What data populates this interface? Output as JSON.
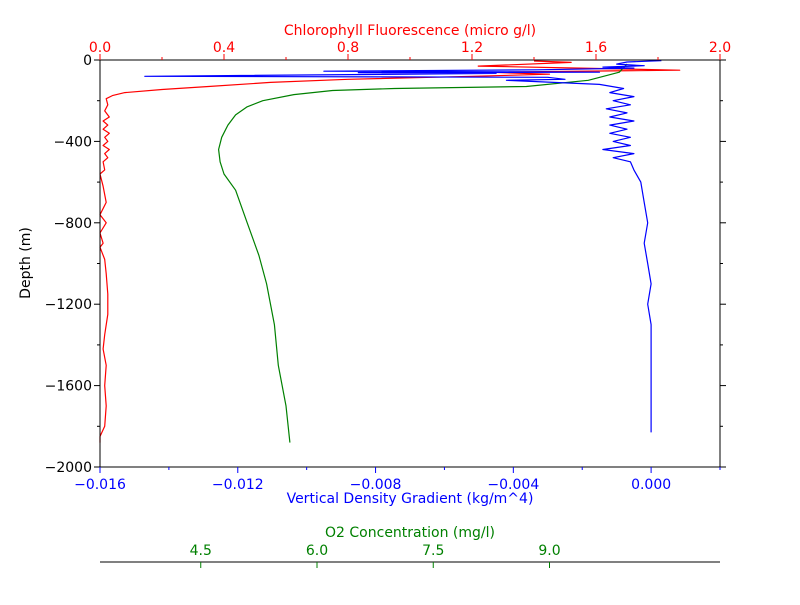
{
  "chart_data": {
    "type": "line",
    "title": "",
    "y_axis": {
      "label": "Depth (m)",
      "range": [
        -2000,
        0
      ],
      "ticks": [
        0,
        -400,
        -800,
        -1200,
        -1600,
        -2000
      ],
      "tick_labels": [
        "0",
        "−400",
        "−800",
        "−1200",
        "−1600",
        "−2000"
      ],
      "minor_ticks": [
        -200,
        -600,
        -1000,
        -1400,
        -1800
      ],
      "color": "#000000"
    },
    "x_axes": [
      {
        "id": "density",
        "position": "bottom",
        "label": "Vertical Density Gradient (kg/m^4)",
        "color": "#0000ff",
        "range": [
          -0.016,
          0.002
        ],
        "ticks": [
          -0.016,
          -0.012,
          -0.008,
          -0.004,
          0.0
        ],
        "tick_labels": [
          "−0.016",
          "−0.012",
          "−0.008",
          "−0.004",
          "0.000"
        ],
        "minor_ticks": [
          -0.014,
          -0.01,
          -0.006,
          -0.002,
          0.002
        ]
      },
      {
        "id": "chlorophyll",
        "position": "top",
        "label": "Chlorophyll Fluorescence (micro g/l)",
        "color": "#ff0000",
        "range": [
          0.0,
          2.0
        ],
        "ticks": [
          0.0,
          0.4,
          0.8,
          1.2,
          1.6,
          2.0
        ],
        "tick_labels": [
          "0.0",
          "0.4",
          "0.8",
          "1.2",
          "1.6",
          "2.0"
        ],
        "minor_ticks": [
          0.2,
          0.6,
          1.0,
          1.4,
          1.8
        ]
      },
      {
        "id": "oxygen",
        "position": "detached-bottom",
        "label": "O2 Concentration (mg/l)",
        "color": "#008000",
        "range": [
          3.2,
          11.2
        ],
        "ticks": [
          4.5,
          6.0,
          7.5,
          9.0
        ],
        "tick_labels": [
          "4.5",
          "6.0",
          "7.5",
          "9.0"
        ]
      }
    ],
    "series": [
      {
        "axis": "chlorophyll",
        "color": "#ff0000",
        "points": [
          [
            1.4,
            -5
          ],
          [
            1.52,
            -12
          ],
          [
            1.22,
            -30
          ],
          [
            1.55,
            -40
          ],
          [
            1.87,
            -50
          ],
          [
            1.25,
            -60
          ],
          [
            1.45,
            -70
          ],
          [
            1.2,
            -80
          ],
          [
            0.8,
            -95
          ],
          [
            0.55,
            -110
          ],
          [
            0.35,
            -130
          ],
          [
            0.2,
            -145
          ],
          [
            0.08,
            -160
          ],
          [
            0.04,
            -175
          ],
          [
            0.02,
            -190
          ],
          [
            0.025,
            -220
          ],
          [
            0.015,
            -250
          ],
          [
            0.03,
            -280
          ],
          [
            0.01,
            -300
          ],
          [
            0.025,
            -320
          ],
          [
            0.01,
            -340
          ],
          [
            0.03,
            -360
          ],
          [
            0.015,
            -380
          ],
          [
            0.025,
            -400
          ],
          [
            0.01,
            -420
          ],
          [
            0.03,
            -440
          ],
          [
            0.015,
            -460
          ],
          [
            0.025,
            -480
          ],
          [
            0.01,
            -500
          ],
          [
            0.015,
            -540
          ],
          [
            0.0,
            -560
          ],
          [
            0.01,
            -620
          ],
          [
            0.02,
            -700
          ],
          [
            0.0,
            -760
          ],
          [
            0.02,
            -800
          ],
          [
            0.0,
            -850
          ],
          [
            0.01,
            -900
          ],
          [
            0.0,
            -920
          ],
          [
            0.015,
            -980
          ],
          [
            0.02,
            -1050
          ],
          [
            0.025,
            -1150
          ],
          [
            0.025,
            -1250
          ],
          [
            0.015,
            -1350
          ],
          [
            0.01,
            -1420
          ],
          [
            0.02,
            -1500
          ],
          [
            0.015,
            -1600
          ],
          [
            0.02,
            -1700
          ],
          [
            0.015,
            -1800
          ],
          [
            0.0,
            -1850
          ],
          [
            0.0,
            -1880
          ]
        ]
      },
      {
        "axis": "oxygen",
        "color": "#008000",
        "points": [
          [
            10.0,
            -20
          ],
          [
            9.9,
            -60
          ],
          [
            9.5,
            -100
          ],
          [
            8.7,
            -130
          ],
          [
            7.0,
            -140
          ],
          [
            6.2,
            -150
          ],
          [
            5.7,
            -170
          ],
          [
            5.3,
            -200
          ],
          [
            5.1,
            -230
          ],
          [
            4.95,
            -270
          ],
          [
            4.85,
            -320
          ],
          [
            4.77,
            -380
          ],
          [
            4.73,
            -440
          ],
          [
            4.75,
            -500
          ],
          [
            4.8,
            -560
          ],
          [
            4.95,
            -640
          ],
          [
            5.1,
            -800
          ],
          [
            5.25,
            -960
          ],
          [
            5.35,
            -1100
          ],
          [
            5.45,
            -1300
          ],
          [
            5.5,
            -1500
          ],
          [
            5.6,
            -1700
          ],
          [
            5.65,
            -1880
          ]
        ]
      },
      {
        "axis": "density",
        "color": "#0000ff",
        "points": [
          [
            0.0003,
            -3
          ],
          [
            -0.0007,
            -10
          ],
          [
            -0.001,
            -20
          ],
          [
            -0.0002,
            -28
          ],
          [
            -0.0014,
            -35
          ],
          [
            -0.0005,
            -40
          ],
          [
            -0.0033,
            -48
          ],
          [
            -0.0095,
            -55
          ],
          [
            -0.0015,
            -60
          ],
          [
            -0.0085,
            -62
          ],
          [
            -0.0045,
            -66
          ],
          [
            -0.0147,
            -80
          ],
          [
            -0.003,
            -85
          ],
          [
            -0.0025,
            -95
          ],
          [
            -0.0042,
            -100
          ],
          [
            -0.0015,
            -120
          ],
          [
            -0.0008,
            -140
          ],
          [
            -0.0012,
            -160
          ],
          [
            -0.0005,
            -180
          ],
          [
            -0.0011,
            -200
          ],
          [
            -0.0006,
            -220
          ],
          [
            -0.0013,
            -240
          ],
          [
            -0.0007,
            -260
          ],
          [
            -0.0012,
            -280
          ],
          [
            -0.0005,
            -300
          ],
          [
            -0.0012,
            -320
          ],
          [
            -0.0007,
            -340
          ],
          [
            -0.0012,
            -360
          ],
          [
            -0.0006,
            -380
          ],
          [
            -0.0011,
            -400
          ],
          [
            -0.0006,
            -420
          ],
          [
            -0.0014,
            -440
          ],
          [
            -0.0005,
            -460
          ],
          [
            -0.0011,
            -480
          ],
          [
            -0.0006,
            -500
          ],
          [
            -0.0005,
            -540
          ],
          [
            -0.0003,
            -600
          ],
          [
            -0.0002,
            -700
          ],
          [
            -0.0001,
            -800
          ],
          [
            -0.0002,
            -900
          ],
          [
            -0.0001,
            -1000
          ],
          [
            0.0,
            -1100
          ],
          [
            -0.0001,
            -1200
          ],
          [
            0.0,
            -1300
          ],
          [
            0.0,
            -1400
          ],
          [
            0.0,
            -1500
          ],
          [
            0.0,
            -1600
          ],
          [
            0.0,
            -1700
          ],
          [
            0.0,
            -1800
          ],
          [
            0.0,
            -1830
          ]
        ]
      }
    ]
  }
}
